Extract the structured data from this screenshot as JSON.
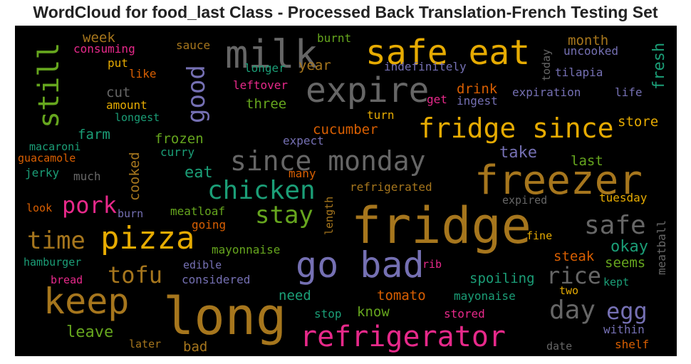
{
  "title": "WordCloud for food_last Class - Processed Back Translation-French Testing Set",
  "colors": {
    "background": "#000000",
    "palette": [
      "#a6761d",
      "#e6ab02",
      "#66a61e",
      "#7570b3",
      "#1b9e77",
      "#d95f02",
      "#e7298a",
      "#666666"
    ]
  },
  "words": [
    {
      "text": "milk"
    },
    {
      "text": "safe eat"
    },
    {
      "text": "still"
    },
    {
      "text": "expire"
    },
    {
      "text": "good"
    },
    {
      "text": "fresh"
    },
    {
      "text": "fridge since"
    },
    {
      "text": "since monday"
    },
    {
      "text": "freezer"
    },
    {
      "text": "chicken"
    },
    {
      "text": "stay"
    },
    {
      "text": "pork"
    },
    {
      "text": "pizza"
    },
    {
      "text": "time"
    },
    {
      "text": "fridge"
    },
    {
      "text": "safe"
    },
    {
      "text": "go bad"
    },
    {
      "text": "tofu"
    },
    {
      "text": "keep"
    },
    {
      "text": "long"
    },
    {
      "text": "refrigerator"
    },
    {
      "text": "day"
    },
    {
      "text": "rice"
    },
    {
      "text": "egg"
    },
    {
      "text": "week"
    },
    {
      "text": "consuming"
    },
    {
      "text": "sauce"
    },
    {
      "text": "burnt"
    },
    {
      "text": "month"
    },
    {
      "text": "uncooked"
    },
    {
      "text": "put"
    },
    {
      "text": "like"
    },
    {
      "text": "longer"
    },
    {
      "text": "year"
    },
    {
      "text": "indefinitely"
    },
    {
      "text": "today"
    },
    {
      "text": "tilapia"
    },
    {
      "text": "leftover"
    },
    {
      "text": "cut"
    },
    {
      "text": "drink"
    },
    {
      "text": "expiration"
    },
    {
      "text": "life"
    },
    {
      "text": "amount"
    },
    {
      "text": "three"
    },
    {
      "text": "get"
    },
    {
      "text": "ingest"
    },
    {
      "text": "longest"
    },
    {
      "text": "turn"
    },
    {
      "text": "farm"
    },
    {
      "text": "cucumber"
    },
    {
      "text": "store"
    },
    {
      "text": "macaroni"
    },
    {
      "text": "frozen"
    },
    {
      "text": "expect"
    },
    {
      "text": "cooked"
    },
    {
      "text": "take"
    },
    {
      "text": "guacamole"
    },
    {
      "text": "curry"
    },
    {
      "text": "last"
    },
    {
      "text": "jerky"
    },
    {
      "text": "eat"
    },
    {
      "text": "much"
    },
    {
      "text": "many"
    },
    {
      "text": "refrigerated"
    },
    {
      "text": "tuesday"
    },
    {
      "text": "look"
    },
    {
      "text": "burn"
    },
    {
      "text": "expired"
    },
    {
      "text": "meatloaf"
    },
    {
      "text": "length"
    },
    {
      "text": "meatball"
    },
    {
      "text": "going"
    },
    {
      "text": "fine"
    },
    {
      "text": "okay"
    },
    {
      "text": "mayonnaise"
    },
    {
      "text": "steak"
    },
    {
      "text": "hamburger"
    },
    {
      "text": "seems"
    },
    {
      "text": "edible"
    },
    {
      "text": "rib"
    },
    {
      "text": "bread"
    },
    {
      "text": "considered"
    },
    {
      "text": "spoiling"
    },
    {
      "text": "kept"
    },
    {
      "text": "two"
    },
    {
      "text": "need"
    },
    {
      "text": "tomato"
    },
    {
      "text": "mayonaise"
    },
    {
      "text": "stop"
    },
    {
      "text": "know"
    },
    {
      "text": "stored"
    },
    {
      "text": "within"
    },
    {
      "text": "leave"
    },
    {
      "text": "later"
    },
    {
      "text": "bad"
    },
    {
      "text": "date"
    },
    {
      "text": "shelf"
    }
  ]
}
